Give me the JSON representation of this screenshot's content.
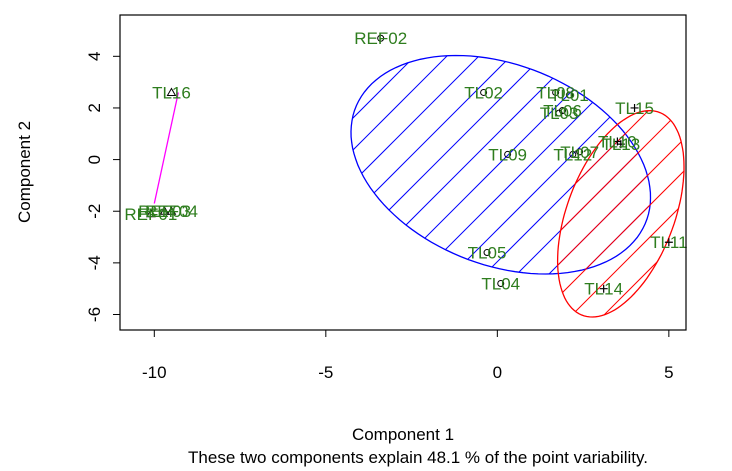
{
  "chart_data": {
    "type": "scatter",
    "title": "",
    "xlabel": "Component 1",
    "ylabel": "Component 2",
    "subtitle": "These two components explain 48.1 % of the point variability.",
    "xlim": [
      -11,
      5.5
    ],
    "ylim": [
      -6.6,
      5.6
    ],
    "xticks": [
      -10,
      -5,
      0,
      5
    ],
    "yticks": [
      -6,
      -4,
      -2,
      0,
      2,
      4
    ],
    "label_color": "#2e7d1e",
    "points": [
      {
        "label": "REF02",
        "x": -3.4,
        "y": 4.7,
        "cluster": 1
      },
      {
        "label": "TL02",
        "x": -0.4,
        "y": 2.6,
        "cluster": 1
      },
      {
        "label": "TL08",
        "x": 1.7,
        "y": 2.6,
        "cluster": 1
      },
      {
        "label": "TL01",
        "x": 2.1,
        "y": 2.5,
        "cluster": 1
      },
      {
        "label": "TL06",
        "x": 1.9,
        "y": 1.9,
        "cluster": 1
      },
      {
        "label": "TL03",
        "x": 1.8,
        "y": 1.8,
        "cluster": 1
      },
      {
        "label": "TL09",
        "x": 0.3,
        "y": 0.2,
        "cluster": 1
      },
      {
        "label": "TL07",
        "x": 2.4,
        "y": 0.3,
        "cluster": 1
      },
      {
        "label": "TL12",
        "x": 2.2,
        "y": 0.2,
        "cluster": 1
      },
      {
        "label": "TL05",
        "x": -0.3,
        "y": -3.6,
        "cluster": 1
      },
      {
        "label": "TL04",
        "x": 0.1,
        "y": -4.8,
        "cluster": 1
      },
      {
        "label": "TL15",
        "x": 4.0,
        "y": 2.0,
        "cluster": 2
      },
      {
        "label": "TL10",
        "x": 3.5,
        "y": 0.7,
        "cluster": 2
      },
      {
        "label": "TL13",
        "x": 3.6,
        "y": 0.6,
        "cluster": 2
      },
      {
        "label": "TL11",
        "x": 5.0,
        "y": -3.2,
        "cluster": 2
      },
      {
        "label": "TL14",
        "x": 3.1,
        "y": -5.0,
        "cluster": 2
      },
      {
        "label": "TL16",
        "x": -9.5,
        "y": 2.6,
        "cluster": 3
      },
      {
        "label": "REF01",
        "x": -10.1,
        "y": -2.1,
        "cluster": 3
      },
      {
        "label": "REF03",
        "x": -9.7,
        "y": -2.0,
        "cluster": 3
      },
      {
        "label": "REF04",
        "x": -9.5,
        "y": -2.0,
        "cluster": 3
      }
    ],
    "clusters": [
      {
        "id": 1,
        "color": "#0000ff",
        "shade": "diagonal-lines",
        "center": [
          0.1,
          -0.2
        ],
        "a": 4.9,
        "b": 3.6,
        "angle_deg": -42
      },
      {
        "id": 2,
        "color": "#ff0000",
        "shade": "diagonal-lines",
        "center": [
          3.6,
          -2.1
        ],
        "a": 4.1,
        "b": 1.6,
        "angle_deg": 76
      },
      {
        "id": 3,
        "color": "#ff00ff",
        "shade": "segment",
        "from": [
          -9.3,
          2.6
        ],
        "to": [
          -10.0,
          -1.7
        ]
      }
    ],
    "grid": false,
    "legend": "none"
  }
}
